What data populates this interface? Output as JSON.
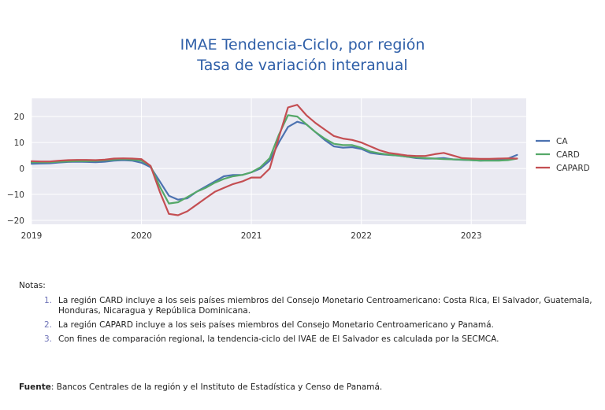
{
  "chart_data": {
    "type": "line",
    "title": "IMAE Tendencia-Ciclo, por región",
    "subtitle": "Tasa de variación interanual",
    "xlabel": "",
    "ylabel": "",
    "x_tick_labels": [
      "2019",
      "2020",
      "2021",
      "2022",
      "2023"
    ],
    "y_tick_labels": [
      "20",
      "10",
      "0",
      "−10",
      "−20"
    ],
    "y_ticks": [
      20,
      10,
      0,
      -10,
      -20
    ],
    "ylim": [
      -21.5,
      27
    ],
    "xlim": [
      2019.0,
      2023.5
    ],
    "grid": true,
    "legend_position": "right",
    "x": [
      2019.0,
      2019.083,
      2019.167,
      2019.25,
      2019.333,
      2019.417,
      2019.5,
      2019.583,
      2019.667,
      2019.75,
      2019.833,
      2019.917,
      2020.0,
      2020.083,
      2020.167,
      2020.25,
      2020.333,
      2020.417,
      2020.5,
      2020.583,
      2020.667,
      2020.75,
      2020.833,
      2020.917,
      2021.0,
      2021.083,
      2021.167,
      2021.25,
      2021.333,
      2021.417,
      2021.5,
      2021.583,
      2021.667,
      2021.75,
      2021.833,
      2021.917,
      2022.0,
      2022.083,
      2022.167,
      2022.25,
      2022.333,
      2022.417,
      2022.5,
      2022.583,
      2022.667,
      2022.75,
      2022.833,
      2022.917,
      2023.0,
      2023.083,
      2023.167,
      2023.25,
      2023.333,
      2023.417
    ],
    "series": [
      {
        "name": "CA",
        "color": "#4c72b0",
        "values": [
          1.8,
          1.9,
          2.0,
          2.3,
          2.5,
          2.6,
          2.5,
          2.4,
          2.6,
          3.0,
          3.2,
          3.0,
          2.2,
          0.5,
          -5.0,
          -10.5,
          -12.0,
          -11.5,
          -9.0,
          -7.0,
          -5.0,
          -3.0,
          -2.5,
          -2.5,
          -1.5,
          0.0,
          3.0,
          10.0,
          16.0,
          18.0,
          17.0,
          14.0,
          11.0,
          8.5,
          8.0,
          8.2,
          7.5,
          6.0,
          5.5,
          5.2,
          5.0,
          4.5,
          4.0,
          3.8,
          3.8,
          4.0,
          3.5,
          3.3,
          3.2,
          3.0,
          3.2,
          3.3,
          3.8,
          5.2
        ]
      },
      {
        "name": "CARD",
        "color": "#55a868",
        "values": [
          2.4,
          2.4,
          2.4,
          2.6,
          2.7,
          2.8,
          2.8,
          2.9,
          3.1,
          3.4,
          3.6,
          3.4,
          3.0,
          1.0,
          -7.0,
          -13.5,
          -13.0,
          -11.0,
          -9.0,
          -7.5,
          -5.5,
          -4.0,
          -3.0,
          -2.5,
          -1.5,
          0.5,
          4.0,
          13.0,
          20.5,
          20.0,
          17.0,
          14.0,
          11.5,
          9.5,
          9.0,
          9.0,
          8.0,
          6.5,
          5.8,
          5.3,
          5.0,
          4.5,
          4.2,
          4.0,
          3.8,
          3.6,
          3.5,
          3.4,
          3.2,
          3.0,
          3.0,
          3.0,
          3.2,
          3.8
        ]
      },
      {
        "name": "CAPARD",
        "color": "#c44e52",
        "values": [
          2.8,
          2.7,
          2.7,
          3.0,
          3.2,
          3.3,
          3.3,
          3.2,
          3.4,
          3.8,
          3.9,
          3.8,
          3.6,
          1.0,
          -9.0,
          -17.5,
          -18.0,
          -16.5,
          -14.0,
          -11.5,
          -9.0,
          -7.5,
          -6.0,
          -5.0,
          -3.5,
          -3.5,
          0.0,
          12.0,
          23.5,
          24.5,
          20.5,
          17.5,
          15.0,
          12.5,
          11.5,
          11.0,
          10.0,
          8.5,
          7.0,
          6.0,
          5.5,
          5.0,
          4.8,
          4.8,
          5.5,
          6.0,
          5.0,
          4.0,
          3.8,
          3.7,
          3.7,
          3.8,
          3.9,
          3.8
        ]
      }
    ]
  },
  "notes": {
    "heading": "Notas:",
    "items": [
      {
        "num": "1.",
        "text": "La región CARD incluye a los seis países miembros del Consejo Monetario Centroamericano: Costa Rica, El Salvador, Guatemala, Honduras, Nicaragua y República Dominicana."
      },
      {
        "num": "2.",
        "text": "La región CAPARD incluye a los seis países miembros del Consejo Monetario Centroamericano y Panamá."
      },
      {
        "num": "3.",
        "text": "Con fines de comparación regional, la tendencia-ciclo del IVAE de El Salvador es calculada por la SECMCA."
      }
    ]
  },
  "source": {
    "label": "Fuente",
    "text": ": Bancos Centrales de la región y el Instituto de Estadística y Censo de Panamá."
  }
}
